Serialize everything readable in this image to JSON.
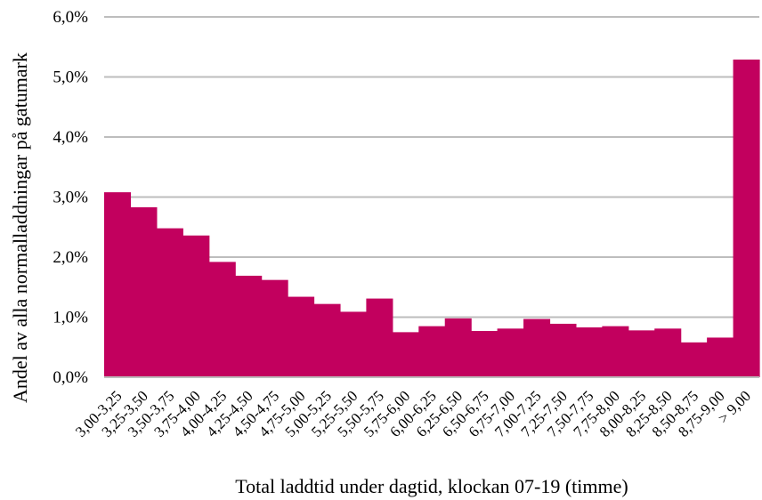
{
  "chart_data": {
    "type": "bar",
    "xlabel": "Total laddtid under dagtid, klockan 07-19 (timme)",
    "ylabel": "Andel av alla normalladdningar på gatumark",
    "ylim": [
      0,
      6
    ],
    "yticks": [
      0,
      1,
      2,
      3,
      4,
      5,
      6
    ],
    "ytick_labels": [
      "0,0%",
      "1,0%",
      "2,0%",
      "3,0%",
      "4,0%",
      "5,0%",
      "6,0%"
    ],
    "grid": true,
    "legend": "none",
    "bar_color": "#C2005E",
    "grid_color": "#BDBDBD",
    "categories": [
      "3,00-3,25",
      "3,25-3,50",
      "3,50-3,75",
      "3,75-4,00",
      "4,00-4,25",
      "4,25-4,50",
      "4,50-4,75",
      "4,75-5,00",
      "5,00-5,25",
      "5,25-5,50",
      "5,50-5,75",
      "5,75-6,00",
      "6,00-6,25",
      "6,25-6,50",
      "6,50-6,75",
      "6,75-7,00",
      "7,00-7,25",
      "7,25-7,50",
      "7,50-7,75",
      "7,75-8,00",
      "8,00-8,25",
      "8,25-8,50",
      "8,50-8,75",
      "8,75-9,00",
      "> 9,00"
    ],
    "values": [
      3.08,
      2.83,
      2.48,
      2.36,
      1.92,
      1.69,
      1.62,
      1.34,
      1.22,
      1.09,
      1.31,
      0.75,
      0.85,
      0.98,
      0.77,
      0.81,
      0.97,
      0.89,
      0.83,
      0.85,
      0.78,
      0.81,
      0.58,
      0.66,
      5.29
    ]
  }
}
